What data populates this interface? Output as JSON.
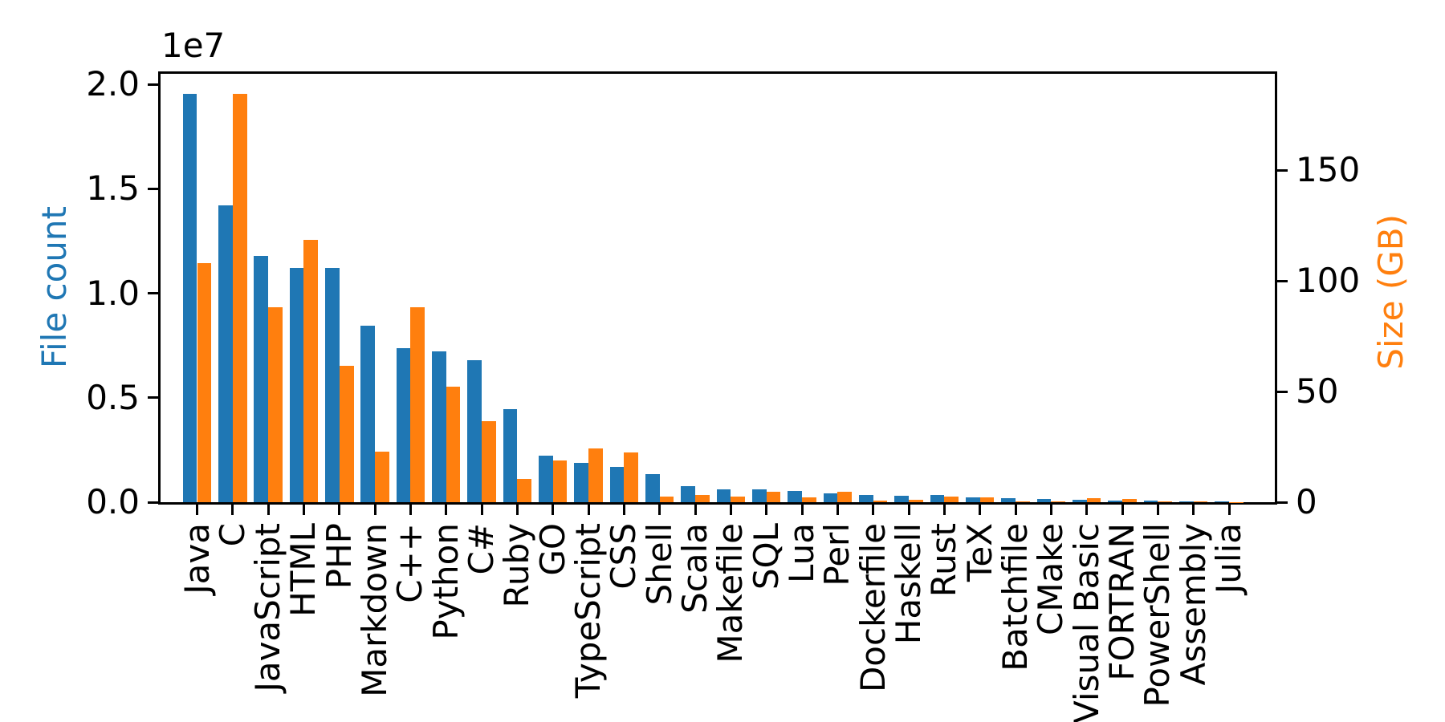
{
  "figure": {
    "background": "#ffffff"
  },
  "chart_data": {
    "type": "bar",
    "title": "",
    "categories": [
      "Java",
      "C",
      "JavaScript",
      "HTML",
      "PHP",
      "Markdown",
      "C++",
      "Python",
      "C#",
      "Ruby",
      "GO",
      "TypeScript",
      "CSS",
      "Shell",
      "Scala",
      "Makefile",
      "SQL",
      "Lua",
      "Perl",
      "Dockerfile",
      "Haskell",
      "Rust",
      "TeX",
      "Batchfile",
      "CMake",
      "Visual Basic",
      "FORTRAN",
      "PowerShell",
      "Assembly",
      "Julia"
    ],
    "series": [
      {
        "name": "File count",
        "axis": "left",
        "color": "#1f77b4",
        "values": [
          19550000,
          14200000,
          11800000,
          11200000,
          11200000,
          8450000,
          7370000,
          7220000,
          6790000,
          4450000,
          2230000,
          1880000,
          1690000,
          1340000,
          770000,
          620000,
          620000,
          550000,
          430000,
          340000,
          290000,
          330000,
          240000,
          210000,
          150000,
          105000,
          65000,
          80000,
          50000,
          25000
        ]
      },
      {
        "name": "Size (GB)",
        "axis": "right",
        "color": "#ff7f0e",
        "values": [
          108,
          184.5,
          88,
          118.6,
          61.5,
          22.8,
          88,
          52,
          36.5,
          10.5,
          18.8,
          24.3,
          22.5,
          2.5,
          3.3,
          2.7,
          4.8,
          2.2,
          4.7,
          0.6,
          1.2,
          2.5,
          2.3,
          0.3,
          0.2,
          1.8,
          1.6,
          0.3,
          0.5,
          0.15
        ]
      }
    ],
    "left_axis": {
      "label": "File count",
      "color": "#1f77b4",
      "offset_label": "1e7",
      "tick_labels": [
        "0.0",
        "0.5",
        "1.0",
        "1.5",
        "2.0"
      ],
      "tick_values": [
        0,
        5000000,
        10000000,
        15000000,
        20000000
      ],
      "lim": [
        0,
        20500000
      ]
    },
    "right_axis": {
      "label": "Size (GB)",
      "color": "#ff7f0e",
      "tick_labels": [
        "0",
        "50",
        "100",
        "150"
      ],
      "tick_values": [
        0,
        50,
        100,
        150
      ],
      "lim": [
        0,
        193.5
      ]
    },
    "x_axis": {
      "tick_rotation": 90
    },
    "legend": "none",
    "grid": false
  }
}
